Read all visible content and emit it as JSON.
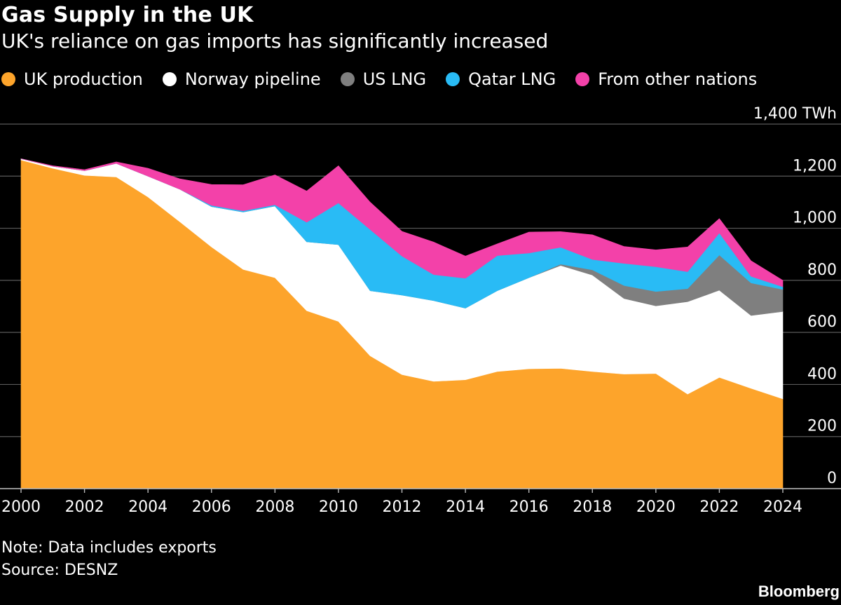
{
  "chart_data": {
    "type": "area",
    "stacked": true,
    "title": "Gas Supply in the UK",
    "subtitle": "UK's reliance on gas imports has significantly increased",
    "xlabel": "",
    "ylabel": "TWh",
    "y_unit_label": "1,400 TWh",
    "ylim": [
      0,
      1400
    ],
    "xlim": [
      2000,
      2024
    ],
    "grid": true,
    "legend_position": "top-left",
    "y_ticks": [
      "0",
      "200",
      "400",
      "600",
      "800",
      "1,000",
      "1,200"
    ],
    "x_ticks": [
      "2000",
      "2002",
      "2004",
      "2006",
      "2008",
      "2010",
      "2012",
      "2014",
      "2016",
      "2018",
      "2020",
      "2022",
      "2024"
    ],
    "x": [
      2000,
      2001,
      2002,
      2003,
      2004,
      2005,
      2006,
      2007,
      2008,
      2009,
      2010,
      2011,
      2012,
      2013,
      2014,
      2015,
      2016,
      2017,
      2018,
      2019,
      2020,
      2021,
      2022,
      2023,
      2024
    ],
    "series": [
      {
        "name": "UK production",
        "color": "#FDA42B",
        "values": [
          1262,
          1230,
          1203,
          1197,
          1120,
          1025,
          928,
          842,
          810,
          683,
          642,
          510,
          438,
          412,
          418,
          450,
          460,
          462,
          450,
          440,
          442,
          363,
          427,
          385,
          345
        ]
      },
      {
        "name": "Norway pipeline",
        "color": "#FFFFFF",
        "values": [
          5,
          8,
          18,
          52,
          80,
          125,
          155,
          220,
          275,
          265,
          295,
          250,
          305,
          310,
          275,
          310,
          350,
          395,
          370,
          290,
          260,
          355,
          335,
          280,
          335
        ]
      },
      {
        "name": "US LNG",
        "color": "#7F7F7F",
        "values": [
          0,
          0,
          0,
          0,
          0,
          0,
          0,
          0,
          0,
          0,
          0,
          0,
          0,
          0,
          0,
          0,
          0,
          5,
          20,
          50,
          55,
          50,
          135,
          125,
          85
        ]
      },
      {
        "name": "Qatar LNG",
        "color": "#29BBF5",
        "values": [
          0,
          0,
          0,
          0,
          0,
          0,
          5,
          5,
          5,
          75,
          160,
          235,
          150,
          100,
          115,
          135,
          95,
          65,
          40,
          85,
          95,
          65,
          85,
          25,
          10
        ]
      },
      {
        "name": "From other nations",
        "color": "#F341A9",
        "values": [
          0,
          2,
          4,
          6,
          30,
          40,
          80,
          100,
          115,
          120,
          143,
          105,
          95,
          125,
          85,
          45,
          80,
          60,
          95,
          65,
          65,
          95,
          55,
          60,
          25
        ]
      }
    ]
  },
  "footer": {
    "note": "Note: Data includes exports",
    "source": "Source: DESNZ",
    "brand": "Bloomberg"
  }
}
